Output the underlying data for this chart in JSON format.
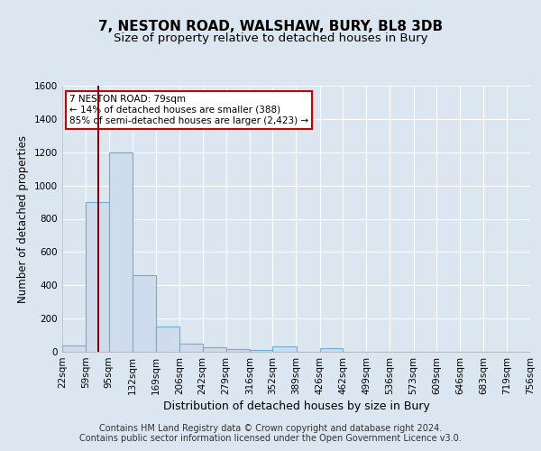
{
  "title": "7, NESTON ROAD, WALSHAW, BURY, BL8 3DB",
  "subtitle": "Size of property relative to detached houses in Bury",
  "xlabel": "Distribution of detached houses by size in Bury",
  "ylabel": "Number of detached properties",
  "footer_line1": "Contains HM Land Registry data © Crown copyright and database right 2024.",
  "footer_line2": "Contains public sector information licensed under the Open Government Licence v3.0.",
  "bin_edges": [
    22,
    59,
    95,
    132,
    169,
    206,
    242,
    279,
    316,
    352,
    389,
    426,
    462,
    499,
    536,
    573,
    609,
    646,
    683,
    719,
    756
  ],
  "bar_values": [
    40,
    900,
    1200,
    460,
    150,
    50,
    25,
    15,
    10,
    30,
    0,
    20,
    0,
    0,
    0,
    0,
    0,
    0,
    0,
    0
  ],
  "bar_color": "#cfdcee",
  "bar_edge_color": "#6baed6",
  "property_sqm": 79,
  "property_label": "7 NESTON ROAD: 79sqm",
  "annotation_line1": "← 14% of detached houses are smaller (388)",
  "annotation_line2": "85% of semi-detached houses are larger (2,423) →",
  "vline_color": "#8b0000",
  "annotation_box_facecolor": "#ffffff",
  "annotation_box_edgecolor": "#cc0000",
  "ylim": [
    0,
    1600
  ],
  "yticks": [
    0,
    200,
    400,
    600,
    800,
    1000,
    1200,
    1400,
    1600
  ],
  "bg_color": "#dce6f0",
  "plot_bg_color": "#dce6f0",
  "grid_color": "#ffffff",
  "title_fontsize": 11,
  "subtitle_fontsize": 9.5,
  "ylabel_fontsize": 8.5,
  "xlabel_fontsize": 9,
  "tick_fontsize": 7.5,
  "annot_fontsize": 7.5,
  "footer_fontsize": 7
}
